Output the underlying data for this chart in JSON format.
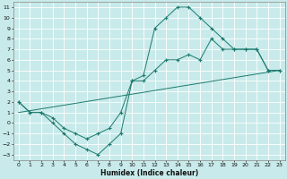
{
  "xlabel": "Humidex (Indice chaleur)",
  "bg_color": "#c8eaea",
  "grid_color": "#ffffff",
  "line_color": "#1a7a6e",
  "xlim": [
    -0.5,
    23.5
  ],
  "ylim": [
    -3.5,
    11.5
  ],
  "line1_x": [
    0,
    1,
    2,
    3,
    4,
    5,
    6,
    7,
    8,
    9,
    10,
    11,
    12,
    13,
    14,
    15,
    16,
    17,
    18,
    19,
    20,
    21,
    22,
    23
  ],
  "line1_y": [
    2,
    1,
    1,
    0,
    -1,
    -2,
    -2.5,
    -3,
    -2,
    -1,
    4,
    4.5,
    9,
    10,
    11,
    11,
    10,
    9,
    8,
    7,
    7,
    7,
    5,
    5
  ],
  "line2_x": [
    0,
    1,
    2,
    3,
    4,
    5,
    6,
    7,
    8,
    9,
    10,
    11,
    12,
    13,
    14,
    15,
    16,
    17,
    18,
    19,
    20,
    21,
    22,
    23
  ],
  "line2_y": [
    2,
    1,
    1,
    0.5,
    -0.5,
    -1,
    -1.5,
    -1,
    -0.5,
    1,
    4,
    4,
    5,
    6,
    6,
    6.5,
    6,
    8,
    7,
    7,
    7,
    7,
    5,
    5
  ],
  "line3_x": [
    0,
    23
  ],
  "line3_y": [
    1,
    5
  ],
  "xtick_labels": [
    "0",
    "1",
    "2",
    "3",
    "4",
    "5",
    "6",
    "7",
    "8",
    "9",
    "10",
    "11",
    "12",
    "13",
    "14",
    "15",
    "16",
    "17",
    "18",
    "19",
    "20",
    "21",
    "22",
    "23"
  ],
  "ytick_labels": [
    "-3",
    "-2",
    "-1",
    "0",
    "1",
    "2",
    "3",
    "4",
    "5",
    "6",
    "7",
    "8",
    "9",
    "10",
    "11"
  ]
}
